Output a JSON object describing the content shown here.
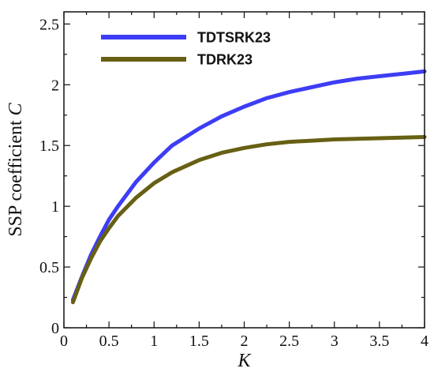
{
  "chart_data": {
    "type": "line",
    "title": "",
    "xlabel": "K",
    "ylabel": {
      "prefix": "SSP coefficient ",
      "symbol": "C"
    },
    "xlim": [
      0,
      4
    ],
    "ylim": [
      0,
      2.6
    ],
    "x_ticks": [
      0,
      0.5,
      1,
      1.5,
      2,
      2.5,
      3,
      3.5,
      4
    ],
    "x_tick_labels": [
      "0",
      "0.5",
      "1",
      "1.5",
      "2",
      "2.5",
      "3",
      "3.5",
      "4"
    ],
    "y_ticks": [
      0,
      0.5,
      1,
      1.5,
      2,
      2.5
    ],
    "y_tick_labels": [
      "0",
      "0.5",
      "1",
      "1.5",
      "2",
      "2.5"
    ],
    "grid": false,
    "legend_position": "top-left",
    "series": [
      {
        "name": "TDTSRK23",
        "color": "#3d3df5",
        "x": [
          0.1,
          0.2,
          0.3,
          0.4,
          0.5,
          0.6,
          0.8,
          1.0,
          1.2,
          1.5,
          1.75,
          2.0,
          2.25,
          2.5,
          2.75,
          3.0,
          3.25,
          3.5,
          3.75,
          4.0
        ],
        "y": [
          0.23,
          0.42,
          0.6,
          0.75,
          0.89,
          1.0,
          1.2,
          1.36,
          1.5,
          1.64,
          1.74,
          1.82,
          1.89,
          1.94,
          1.98,
          2.02,
          2.05,
          2.07,
          2.09,
          2.11
        ]
      },
      {
        "name": "TDRK23",
        "color": "#676014",
        "x": [
          0.1,
          0.2,
          0.3,
          0.4,
          0.5,
          0.6,
          0.8,
          1.0,
          1.2,
          1.5,
          1.75,
          2.0,
          2.25,
          2.5,
          2.75,
          3.0,
          3.25,
          3.5,
          3.75,
          4.0
        ],
        "y": [
          0.21,
          0.41,
          0.57,
          0.71,
          0.82,
          0.92,
          1.07,
          1.19,
          1.28,
          1.38,
          1.44,
          1.48,
          1.51,
          1.53,
          1.54,
          1.55,
          1.555,
          1.56,
          1.565,
          1.57
        ]
      }
    ]
  }
}
